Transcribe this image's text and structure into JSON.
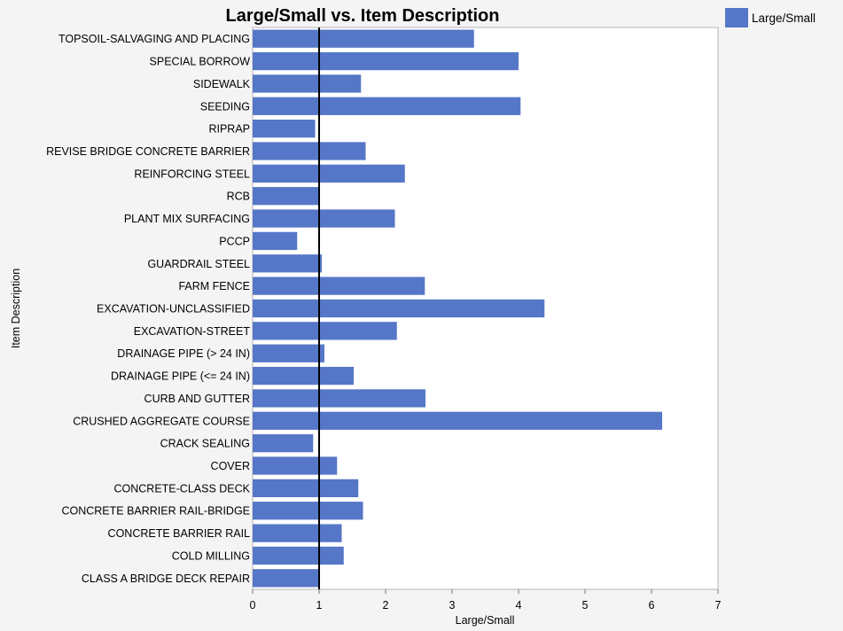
{
  "chart_data": {
    "type": "bar",
    "orientation": "horizontal",
    "title": "Large/Small vs. Item Description",
    "xlabel": "Large/Small",
    "ylabel": "Item Description",
    "xlim": [
      0,
      7
    ],
    "xticks": [
      "0",
      "1",
      "2",
      "3",
      "4",
      "5",
      "6",
      "7"
    ],
    "reference_line_x": 1,
    "grid": false,
    "legend_position": "top-right",
    "bar_color": "#5677c7",
    "series": [
      {
        "name": "Large/Small",
        "categories": [
          "TOPSOIL-SALVAGING AND PLACING",
          "SPECIAL BORROW",
          "SIDEWALK",
          "SEEDING",
          "RIPRAP",
          "REVISE BRIDGE CONCRETE BARRIER",
          "REINFORCING STEEL",
          "RCB",
          "PLANT MIX SURFACING",
          "PCCP",
          "GUARDRAIL STEEL",
          "FARM FENCE",
          "EXCAVATION-UNCLASSIFIED",
          "EXCAVATION-STREET",
          "DRAINAGE PIPE (> 24 IN)",
          "DRAINAGE PIPE (<= 24 IN)",
          "CURB AND GUTTER",
          "CRUSHED AGGREGATE COURSE",
          "CRACK SEALING",
          "COVER",
          "CONCRETE-CLASS DECK",
          "CONCRETE BARRIER RAIL-BRIDGE",
          "CONCRETE BARRIER RAIL",
          "COLD MILLING",
          "CLASS A BRIDGE DECK REPAIR"
        ],
        "values": [
          3.33,
          4.0,
          1.63,
          4.03,
          0.94,
          1.7,
          2.29,
          0.99,
          2.14,
          0.67,
          1.04,
          2.59,
          4.39,
          2.17,
          1.08,
          1.52,
          2.6,
          6.16,
          0.91,
          1.27,
          1.59,
          1.66,
          1.34,
          1.37,
          0.99
        ]
      }
    ]
  }
}
